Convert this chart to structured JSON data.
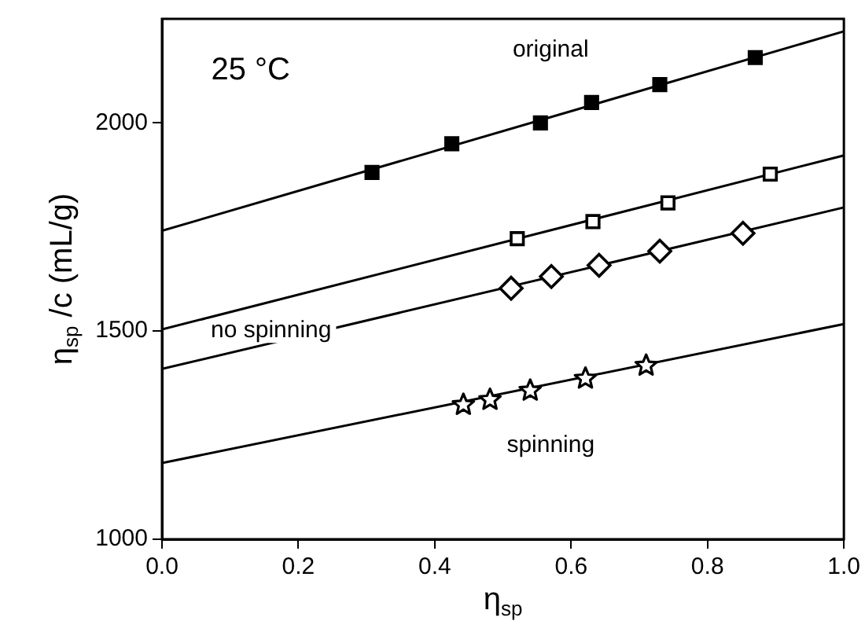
{
  "chart_data": {
    "type": "scatter",
    "xlabel": "η$_{sp}$",
    "ylabel": "η$_{sp}$ /c (mL/g)",
    "xlim": [
      0,
      1
    ],
    "xticks": [
      {
        "value": 0,
        "label": "0.0"
      },
      {
        "value": 0.2,
        "label": "0.2"
      },
      {
        "value": 0.4,
        "label": "0.4"
      },
      {
        "value": 0.6,
        "label": "0.6"
      },
      {
        "value": 0.8,
        "label": "0.8"
      },
      {
        "value": 1,
        "label": "1.0"
      }
    ],
    "ylim": [
      1000,
      2250
    ],
    "yticks": [
      1000,
      1500,
      2000
    ],
    "grid": false,
    "legend": false,
    "series": [
      {
        "marker": "square",
        "color": "#000000",
        "x": [
          0.308,
          0.425,
          0.555,
          0.63,
          0.73,
          0.87
        ],
        "values": [
          1881,
          1950,
          2000,
          2049,
          2092,
          2157
        ]
      },
      {
        "marker": "square",
        "color": "#000000",
        "x": [
          0.521,
          0.632,
          0.742,
          0.892
        ],
        "values": [
          1722,
          1763,
          1808,
          1877
        ]
      },
      {
        "marker": "diamond",
        "color": "#000000",
        "x": [
          0.512,
          0.571,
          0.641,
          0.73,
          0.852
        ],
        "values": [
          1603,
          1631,
          1658,
          1692,
          1735
        ]
      },
      {
        "marker": "star",
        "color": "#000000",
        "x": [
          0.442,
          0.481,
          0.54,
          0.621,
          0.71
        ],
        "values": [
          1323,
          1335,
          1357,
          1386,
          1417
        ]
      },
      {
        "type": "line",
        "marker": "none",
        "color": "#000000",
        "x": [
          0,
          1
        ],
        "values": [
          1741,
          2220
        ]
      },
      {
        "type": "line",
        "marker": "none",
        "color": "#000000",
        "x": [
          0,
          1
        ],
        "values": [
          1504,
          1922
        ]
      },
      {
        "type": "line",
        "marker": "none",
        "color": "#000000",
        "x": [
          0,
          1
        ],
        "values": [
          1409,
          1797
        ]
      },
      {
        "type": "line",
        "marker": "none",
        "color": "#000000",
        "x": [
          0,
          1
        ],
        "values": [
          1183,
          1517
        ]
      }
    ],
    "annotations": [
      "25 °C",
      "original",
      "no spinning",
      "spinning"
    ]
  }
}
